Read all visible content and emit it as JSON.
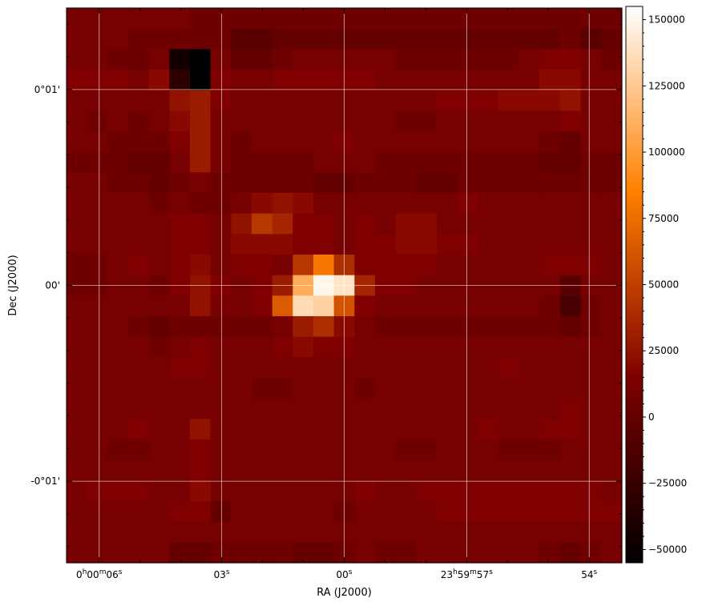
{
  "chart_data": {
    "type": "heatmap",
    "title": "",
    "xlabel": "RA (J2000)",
    "ylabel": "Dec (J2000)",
    "grid": true,
    "colormap": "gist_heat",
    "colormap_stops": [
      "#000000",
      "#800000",
      "#ff8000",
      "#ffffff"
    ],
    "grid_color": "#ffffff",
    "xlim_seconds_of_ra": [
      6.8,
      -6.8
    ],
    "ylim_arcsec": [
      -85,
      85
    ],
    "x_ticks": [
      {
        "value": 6.0,
        "parts": [
          {
            "t": "0"
          },
          {
            "t": "h",
            "sup": true
          },
          {
            "t": "00"
          },
          {
            "t": "m",
            "sup": true
          },
          {
            "t": "06"
          },
          {
            "t": "s",
            "sup": true
          }
        ]
      },
      {
        "value": 3.0,
        "parts": [
          {
            "t": "03"
          },
          {
            "t": "s",
            "sup": true
          }
        ]
      },
      {
        "value": 0.0,
        "parts": [
          {
            "t": "00"
          },
          {
            "t": "s",
            "sup": true
          }
        ]
      },
      {
        "value": -3.0,
        "parts": [
          {
            "t": "23"
          },
          {
            "t": "h",
            "sup": true
          },
          {
            "t": "59"
          },
          {
            "t": "m",
            "sup": true
          },
          {
            "t": "57"
          },
          {
            "t": "s",
            "sup": true
          }
        ]
      },
      {
        "value": -6.0,
        "parts": [
          {
            "t": "54"
          },
          {
            "t": "s",
            "sup": true
          }
        ]
      }
    ],
    "x_minor_ticks": [
      5.0,
      4.0,
      2.0,
      1.0,
      -1.0,
      -2.0,
      -4.0,
      -5.0
    ],
    "y_ticks": [
      {
        "value": 60,
        "label": "0°01'"
      },
      {
        "value": 0,
        "label": "00'"
      },
      {
        "value": -60,
        "label": "-0°01'"
      }
    ],
    "y_minor_ticks": [
      -80,
      -70,
      -50,
      -40,
      -30,
      -20,
      -10,
      10,
      20,
      30,
      40,
      50,
      70,
      80
    ],
    "colorbar": {
      "min": -55000,
      "max": 155000,
      "ticks": [
        -50000,
        -25000,
        0,
        25000,
        50000,
        75000,
        100000,
        125000,
        150000
      ],
      "tick_labels": [
        "−50000",
        "−25000",
        "0",
        "25000",
        "50000",
        "75000",
        "100000",
        "125000",
        "150000"
      ],
      "minor_ticks": [
        -45000,
        -40000,
        -35000,
        -30000,
        -20000,
        -15000,
        -10000,
        -5000,
        5000,
        10000,
        15000,
        20000,
        30000,
        35000,
        40000,
        45000,
        55000,
        60000,
        65000,
        70000,
        80000,
        85000,
        90000,
        95000,
        105000,
        110000,
        115000,
        120000,
        130000,
        135000,
        140000,
        145000
      ]
    },
    "grid_rows": 27,
    "grid_cols": 27,
    "values": [
      [
        10000,
        10000,
        10000,
        10000,
        10000,
        10000,
        5000,
        5000,
        5000,
        5000,
        5000,
        5000,
        5000,
        5000,
        5000,
        5000,
        5000,
        5000,
        5000,
        5000,
        5000,
        5000,
        5000,
        5000,
        5000,
        5000,
        5000
      ],
      [
        10000,
        10000,
        10000,
        5000,
        5000,
        5000,
        5000,
        5000,
        -5000,
        -5000,
        0,
        0,
        0,
        0,
        0,
        0,
        0,
        0,
        0,
        0,
        0,
        0,
        0,
        0,
        5000,
        -5000,
        0
      ],
      [
        10000,
        10000,
        5000,
        5000,
        10000,
        -45000,
        -55000,
        10000,
        0,
        0,
        5000,
        10000,
        10000,
        10000,
        10000,
        10000,
        5000,
        5000,
        5000,
        5000,
        5000,
        5000,
        10000,
        15000,
        15000,
        10000,
        5000
      ],
      [
        15000,
        15000,
        15000,
        10000,
        20000,
        -30000,
        -55000,
        15000,
        10000,
        10000,
        15000,
        15000,
        15000,
        15000,
        15000,
        10000,
        10000,
        10000,
        10000,
        10000,
        10000,
        10000,
        10000,
        20000,
        20000,
        10000,
        10000
      ],
      [
        10000,
        10000,
        10000,
        10000,
        10000,
        25000,
        30000,
        15000,
        10000,
        10000,
        10000,
        10000,
        10000,
        10000,
        10000,
        10000,
        10000,
        10000,
        15000,
        15000,
        15000,
        20000,
        20000,
        20000,
        25000,
        10000,
        10000
      ],
      [
        10000,
        5000,
        10000,
        5000,
        10000,
        20000,
        30000,
        10000,
        10000,
        10000,
        10000,
        10000,
        10000,
        10000,
        10000,
        10000,
        5000,
        5000,
        10000,
        10000,
        10000,
        10000,
        10000,
        10000,
        15000,
        10000,
        10000
      ],
      [
        10000,
        10000,
        5000,
        5000,
        5000,
        15000,
        30000,
        10000,
        5000,
        10000,
        10000,
        10000,
        10000,
        15000,
        10000,
        10000,
        10000,
        10000,
        10000,
        10000,
        10000,
        10000,
        10000,
        5000,
        0,
        10000,
        10000
      ],
      [
        5000,
        5000,
        5000,
        0,
        0,
        10000,
        30000,
        10000,
        5000,
        5000,
        5000,
        5000,
        10000,
        10000,
        10000,
        5000,
        5000,
        5000,
        5000,
        5000,
        5000,
        5000,
        5000,
        0,
        0,
        5000,
        5000
      ],
      [
        10000,
        10000,
        5000,
        5000,
        0,
        5000,
        10000,
        5000,
        5000,
        5000,
        5000,
        5000,
        0,
        0,
        5000,
        5000,
        5000,
        0,
        0,
        5000,
        5000,
        5000,
        5000,
        5000,
        5000,
        5000,
        5000
      ],
      [
        10000,
        10000,
        10000,
        10000,
        5000,
        10000,
        5000,
        5000,
        10000,
        20000,
        25000,
        20000,
        10000,
        10000,
        10000,
        10000,
        10000,
        10000,
        10000,
        15000,
        10000,
        10000,
        10000,
        10000,
        10000,
        10000,
        10000
      ],
      [
        10000,
        10000,
        10000,
        10000,
        10000,
        15000,
        15000,
        10000,
        25000,
        45000,
        35000,
        15000,
        15000,
        10000,
        15000,
        10000,
        20000,
        20000,
        10000,
        10000,
        10000,
        10000,
        10000,
        10000,
        10000,
        10000,
        10000
      ],
      [
        10000,
        10000,
        10000,
        10000,
        10000,
        15000,
        15000,
        10000,
        20000,
        20000,
        20000,
        15000,
        15000,
        10000,
        15000,
        15000,
        20000,
        20000,
        15000,
        15000,
        10000,
        10000,
        10000,
        10000,
        10000,
        10000,
        10000
      ],
      [
        5000,
        5000,
        10000,
        15000,
        10000,
        15000,
        20000,
        10000,
        15000,
        15000,
        10000,
        45000,
        80000,
        40000,
        15000,
        15000,
        15000,
        15000,
        10000,
        10000,
        10000,
        10000,
        10000,
        15000,
        15000,
        15000,
        10000
      ],
      [
        5000,
        5000,
        10000,
        10000,
        5000,
        15000,
        25000,
        15000,
        10000,
        15000,
        30000,
        110000,
        150000,
        140000,
        35000,
        15000,
        15000,
        10000,
        10000,
        10000,
        10000,
        10000,
        10000,
        10000,
        -5000,
        10000,
        10000
      ],
      [
        10000,
        10000,
        10000,
        10000,
        10000,
        10000,
        25000,
        10000,
        10000,
        15000,
        65000,
        135000,
        130000,
        60000,
        15000,
        10000,
        10000,
        10000,
        10000,
        10000,
        10000,
        10000,
        10000,
        5000,
        -15000,
        5000,
        10000
      ],
      [
        10000,
        10000,
        10000,
        5000,
        0,
        5000,
        5000,
        5000,
        5000,
        5000,
        10000,
        30000,
        40000,
        20000,
        10000,
        5000,
        5000,
        5000,
        5000,
        5000,
        5000,
        5000,
        5000,
        5000,
        0,
        5000,
        10000
      ],
      [
        10000,
        10000,
        10000,
        10000,
        5000,
        10000,
        15000,
        10000,
        10000,
        10000,
        15000,
        20000,
        15000,
        15000,
        10000,
        10000,
        10000,
        10000,
        10000,
        10000,
        10000,
        10000,
        10000,
        10000,
        10000,
        10000,
        10000
      ],
      [
        10000,
        10000,
        10000,
        10000,
        10000,
        15000,
        15000,
        10000,
        10000,
        10000,
        10000,
        10000,
        10000,
        10000,
        10000,
        10000,
        10000,
        10000,
        10000,
        10000,
        10000,
        15000,
        10000,
        10000,
        10000,
        10000,
        10000
      ],
      [
        10000,
        10000,
        10000,
        10000,
        10000,
        10000,
        10000,
        10000,
        10000,
        5000,
        5000,
        10000,
        10000,
        10000,
        5000,
        10000,
        10000,
        10000,
        10000,
        10000,
        10000,
        10000,
        10000,
        10000,
        10000,
        10000,
        10000
      ],
      [
        10000,
        10000,
        10000,
        10000,
        10000,
        10000,
        10000,
        10000,
        10000,
        10000,
        10000,
        10000,
        10000,
        10000,
        10000,
        10000,
        10000,
        10000,
        10000,
        10000,
        10000,
        10000,
        10000,
        10000,
        15000,
        10000,
        10000
      ],
      [
        10000,
        10000,
        10000,
        15000,
        10000,
        10000,
        25000,
        10000,
        10000,
        10000,
        10000,
        10000,
        10000,
        10000,
        10000,
        10000,
        10000,
        10000,
        10000,
        10000,
        15000,
        10000,
        10000,
        15000,
        15000,
        10000,
        10000
      ],
      [
        10000,
        10000,
        5000,
        5000,
        10000,
        10000,
        15000,
        10000,
        10000,
        10000,
        10000,
        10000,
        10000,
        10000,
        10000,
        10000,
        5000,
        5000,
        10000,
        10000,
        10000,
        5000,
        5000,
        5000,
        10000,
        10000,
        10000
      ],
      [
        10000,
        10000,
        10000,
        10000,
        10000,
        10000,
        15000,
        10000,
        10000,
        10000,
        10000,
        10000,
        10000,
        10000,
        10000,
        10000,
        10000,
        10000,
        10000,
        10000,
        10000,
        10000,
        10000,
        10000,
        10000,
        10000,
        10000
      ],
      [
        10000,
        15000,
        15000,
        15000,
        10000,
        10000,
        20000,
        10000,
        10000,
        10000,
        10000,
        10000,
        10000,
        10000,
        15000,
        10000,
        10000,
        15000,
        15000,
        15000,
        15000,
        15000,
        15000,
        15000,
        15000,
        15000,
        10000
      ],
      [
        10000,
        10000,
        10000,
        10000,
        10000,
        15000,
        15000,
        0,
        10000,
        10000,
        10000,
        10000,
        10000,
        5000,
        10000,
        10000,
        10000,
        10000,
        15000,
        15000,
        15000,
        15000,
        15000,
        15000,
        15000,
        15000,
        15000
      ],
      [
        10000,
        10000,
        10000,
        10000,
        10000,
        10000,
        10000,
        10000,
        10000,
        10000,
        10000,
        10000,
        10000,
        10000,
        10000,
        10000,
        10000,
        10000,
        10000,
        10000,
        10000,
        10000,
        10000,
        10000,
        10000,
        10000,
        10000
      ],
      [
        10000,
        10000,
        10000,
        10000,
        10000,
        0,
        0,
        5000,
        5000,
        5000,
        5000,
        0,
        0,
        5000,
        10000,
        5000,
        5000,
        10000,
        10000,
        10000,
        10000,
        10000,
        10000,
        5000,
        0,
        5000,
        10000
      ]
    ]
  }
}
